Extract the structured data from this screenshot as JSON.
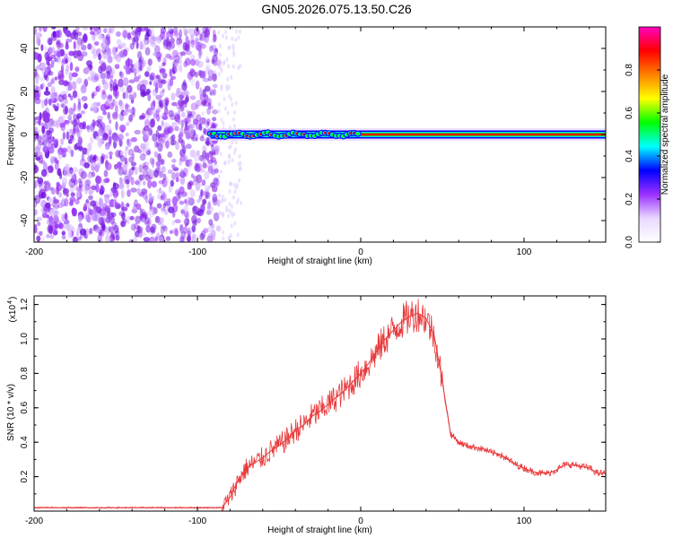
{
  "title": "GN05.2026.075.13.50.C26",
  "chart_data": [
    {
      "type": "heatmap",
      "xlabel": "Height of straight line (km)",
      "ylabel": "Frequency (Hz)",
      "xlim": [
        -200,
        150
      ],
      "ylim": [
        -50,
        50
      ],
      "xticks": [
        -200,
        -100,
        0,
        100
      ],
      "yticks": [
        -40,
        -20,
        0,
        20,
        40
      ],
      "noise_region_x": [
        -200,
        -87
      ],
      "signal_frequency_hz": 0,
      "colorbar": {
        "label": "Normalized spectral amplitude",
        "range": [
          0,
          1
        ],
        "ticks": [
          "0.0",
          "0.2",
          "0.4",
          "0.6",
          "0.8"
        ],
        "colors": [
          "#ffffff",
          "#e8d8ff",
          "#9b30ff",
          "#0000ff",
          "#00ffff",
          "#00ff00",
          "#ffff00",
          "#ff8000",
          "#ff0000",
          "#ff00c0"
        ]
      }
    },
    {
      "type": "line",
      "xlabel": "Height of straight line (km)",
      "ylabel": "SNR (10 * v/v)",
      "yscale_label": "(x10",
      "yscale_exp": "4",
      "xlim": [
        -200,
        150
      ],
      "ylim": [
        0,
        1.25
      ],
      "xticks": [
        -200,
        -100,
        0,
        100
      ],
      "yticks": [
        "0.2",
        "0.4",
        "0.6",
        "0.8",
        "1.0",
        "1.2"
      ],
      "line_color": "#e8383a",
      "series": [
        {
          "x": [
            -200,
            -150,
            -100,
            -85,
            -80,
            -75,
            -70,
            -65,
            -60,
            -55,
            -50,
            -45,
            -40,
            -35,
            -30,
            -25,
            -20,
            -15,
            -10,
            -5,
            0,
            5,
            10,
            15,
            20,
            25,
            30,
            35,
            40,
            45,
            50,
            55,
            60,
            65,
            70,
            75,
            80,
            85,
            90,
            95,
            100,
            105,
            110,
            115,
            120,
            125,
            130,
            135,
            140,
            145,
            150
          ],
          "values": [
            0.02,
            0.02,
            0.02,
            0.02,
            0.08,
            0.18,
            0.25,
            0.28,
            0.31,
            0.35,
            0.38,
            0.42,
            0.47,
            0.5,
            0.55,
            0.58,
            0.62,
            0.66,
            0.7,
            0.75,
            0.8,
            0.86,
            0.93,
            1.0,
            1.05,
            1.1,
            1.13,
            1.15,
            1.12,
            1.02,
            0.75,
            0.45,
            0.4,
            0.38,
            0.37,
            0.36,
            0.34,
            0.33,
            0.3,
            0.27,
            0.25,
            0.23,
            0.22,
            0.22,
            0.24,
            0.27,
            0.27,
            0.26,
            0.25,
            0.22,
            0.22
          ]
        }
      ]
    }
  ]
}
